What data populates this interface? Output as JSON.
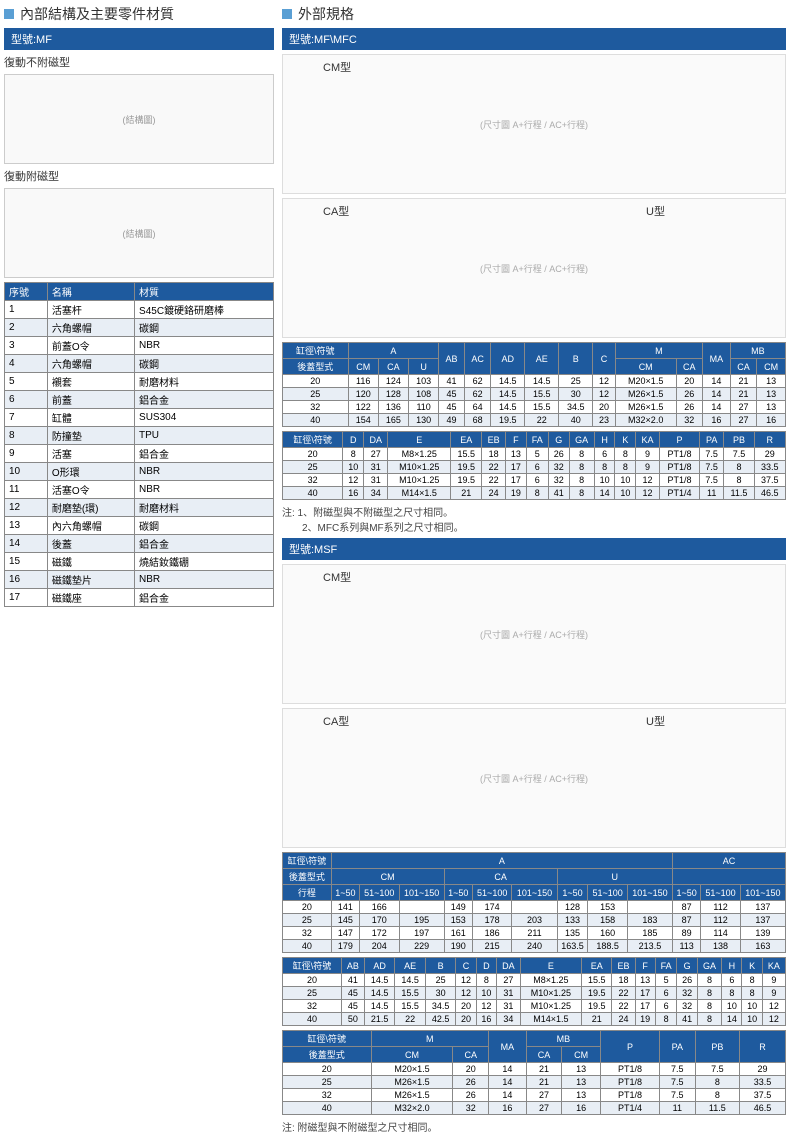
{
  "left": {
    "title": "內部結構及主要零件材質",
    "model_header": "型號:MF",
    "diag1_label": "復動不附磁型",
    "diag2_label": "復動附磁型",
    "diagram_placeholder": "(結構圖)",
    "parts_header": {
      "no": "序號",
      "name": "名稱",
      "material": "材質"
    },
    "parts": [
      {
        "no": "1",
        "name": "活塞杆",
        "material": "S45C鍍硬鉻研磨棒"
      },
      {
        "no": "2",
        "name": "六角螺帽",
        "material": "碳鋼"
      },
      {
        "no": "3",
        "name": "前蓋O令",
        "material": "NBR"
      },
      {
        "no": "4",
        "name": "六角螺帽",
        "material": "碳鋼"
      },
      {
        "no": "5",
        "name": "襯套",
        "material": "耐磨材料"
      },
      {
        "no": "6",
        "name": "前蓋",
        "material": "鋁合金"
      },
      {
        "no": "7",
        "name": "缸體",
        "material": "SUS304"
      },
      {
        "no": "8",
        "name": "防撞墊",
        "material": "TPU"
      },
      {
        "no": "9",
        "name": "活塞",
        "material": "鋁合金"
      },
      {
        "no": "10",
        "name": "O形環",
        "material": "NBR"
      },
      {
        "no": "11",
        "name": "活塞O令",
        "material": "NBR"
      },
      {
        "no": "12",
        "name": "耐磨墊(環)",
        "material": "耐磨材料"
      },
      {
        "no": "13",
        "name": "內六角螺帽",
        "material": "碳鋼"
      },
      {
        "no": "14",
        "name": "後蓋",
        "material": "鋁合金"
      },
      {
        "no": "15",
        "name": "磁鐵",
        "material": "燒結釹鐵硼"
      },
      {
        "no": "16",
        "name": "磁鐵墊片",
        "material": "NBR"
      },
      {
        "no": "17",
        "name": "磁鐵座",
        "material": "鋁合金"
      }
    ]
  },
  "right": {
    "title": "外部規格",
    "section1": {
      "model_header": "型號:MF\\MFC",
      "cm_label": "CM型",
      "ca_label": "CA型",
      "u_label": "U型",
      "diagram_placeholder": "(尺寸圖 A+行程 / AC+行程)",
      "table1": {
        "header_main": "缸徑\\符號",
        "header_sub": "後蓋型式",
        "cols_top": [
          "A",
          "",
          "",
          "AB",
          "AC",
          "AD",
          "AE",
          "B",
          "C",
          "M",
          "",
          "MA",
          "MB",
          ""
        ],
        "cols_sub": [
          "CM",
          "CA",
          "U",
          "",
          "",
          "",
          "",
          "",
          "",
          "CM",
          "CA",
          "",
          "CA",
          "CM"
        ],
        "rows": [
          [
            "20",
            "116",
            "124",
            "103",
            "41",
            "62",
            "14.5",
            "14.5",
            "25",
            "12",
            "M20×1.5",
            "20",
            "14",
            "21",
            "13"
          ],
          [
            "25",
            "120",
            "128",
            "108",
            "45",
            "62",
            "14.5",
            "15.5",
            "30",
            "12",
            "M26×1.5",
            "26",
            "14",
            "21",
            "13"
          ],
          [
            "32",
            "122",
            "136",
            "110",
            "45",
            "64",
            "14.5",
            "15.5",
            "34.5",
            "20",
            "M26×1.5",
            "26",
            "14",
            "27",
            "13"
          ],
          [
            "40",
            "154",
            "165",
            "130",
            "49",
            "68",
            "19.5",
            "22",
            "40",
            "23",
            "M32×2.0",
            "32",
            "16",
            "27",
            "16"
          ]
        ]
      },
      "table2": {
        "header_main": "缸徑\\符號",
        "cols": [
          "D",
          "DA",
          "E",
          "EA",
          "EB",
          "F",
          "FA",
          "G",
          "GA",
          "H",
          "K",
          "KA",
          "P",
          "PA",
          "PB",
          "R"
        ],
        "rows": [
          [
            "20",
            "8",
            "27",
            "M8×1.25",
            "15.5",
            "18",
            "13",
            "5",
            "26",
            "8",
            "6",
            "8",
            "9",
            "PT1/8",
            "7.5",
            "7.5",
            "29"
          ],
          [
            "25",
            "10",
            "31",
            "M10×1.25",
            "19.5",
            "22",
            "17",
            "6",
            "32",
            "8",
            "8",
            "8",
            "9",
            "PT1/8",
            "7.5",
            "8",
            "33.5"
          ],
          [
            "32",
            "12",
            "31",
            "M10×1.25",
            "19.5",
            "22",
            "17",
            "6",
            "32",
            "8",
            "10",
            "10",
            "12",
            "PT1/8",
            "7.5",
            "8",
            "37.5"
          ],
          [
            "40",
            "16",
            "34",
            "M14×1.5",
            "21",
            "24",
            "19",
            "8",
            "41",
            "8",
            "14",
            "10",
            "12",
            "PT1/4",
            "11",
            "11.5",
            "46.5"
          ]
        ]
      },
      "note": "注: 1、附磁型與不附磁型之尺寸相同。\n　　2、MFC系列與MF系列之尺寸相同。"
    },
    "section2": {
      "model_header": "型號:MSF",
      "cm_label": "CM型",
      "ca_label": "CA型",
      "u_label": "U型",
      "diagram_placeholder": "(尺寸圖 A+行程 / AC+行程)",
      "table1": {
        "header1": "缸徑\\符號",
        "header2": "後蓋型式",
        "header3": "行程",
        "group_cols": [
          "A",
          "AC"
        ],
        "sub_cols": [
          "CM",
          "CA",
          "U",
          ""
        ],
        "range_cols": [
          "1~50",
          "51~100",
          "101~150",
          "1~50",
          "51~100",
          "101~150",
          "1~50",
          "51~100",
          "101~150",
          "1~50",
          "51~100",
          "101~150"
        ],
        "rows": [
          [
            "20",
            "141",
            "166",
            "",
            "149",
            "174",
            "",
            "128",
            "153",
            "",
            "87",
            "112",
            "137"
          ],
          [
            "25",
            "145",
            "170",
            "195",
            "153",
            "178",
            "203",
            "133",
            "158",
            "183",
            "87",
            "112",
            "137"
          ],
          [
            "32",
            "147",
            "172",
            "197",
            "161",
            "186",
            "211",
            "135",
            "160",
            "185",
            "89",
            "114",
            "139"
          ],
          [
            "40",
            "179",
            "204",
            "229",
            "190",
            "215",
            "240",
            "163.5",
            "188.5",
            "213.5",
            "113",
            "138",
            "163"
          ]
        ]
      },
      "table2": {
        "header_main": "缸徑\\符號",
        "cols": [
          "AB",
          "AD",
          "AE",
          "B",
          "C",
          "D",
          "DA",
          "E",
          "EA",
          "EB",
          "F",
          "FA",
          "G",
          "GA",
          "H",
          "K",
          "KA"
        ],
        "rows": [
          [
            "20",
            "41",
            "14.5",
            "14.5",
            "25",
            "12",
            "8",
            "27",
            "M8×1.25",
            "15.5",
            "18",
            "13",
            "5",
            "26",
            "8",
            "6",
            "8",
            "9"
          ],
          [
            "25",
            "45",
            "14.5",
            "15.5",
            "30",
            "12",
            "10",
            "31",
            "M10×1.25",
            "19.5",
            "22",
            "17",
            "6",
            "32",
            "8",
            "8",
            "8",
            "9"
          ],
          [
            "32",
            "45",
            "14.5",
            "15.5",
            "34.5",
            "20",
            "12",
            "31",
            "M10×1.25",
            "19.5",
            "22",
            "17",
            "6",
            "32",
            "8",
            "10",
            "10",
            "12"
          ],
          [
            "40",
            "50",
            "21.5",
            "22",
            "42.5",
            "20",
            "16",
            "34",
            "M14×1.5",
            "21",
            "24",
            "19",
            "8",
            "41",
            "8",
            "14",
            "10",
            "12"
          ]
        ]
      },
      "table3": {
        "header1": "缸徑\\符號",
        "header2": "後蓋型式",
        "group_cols": [
          "M",
          "MA",
          "MB",
          "P",
          "PA",
          "PB",
          "R"
        ],
        "sub_cols": [
          "CM",
          "CA",
          "",
          "CA",
          "CM",
          "",
          "",
          "",
          ""
        ],
        "rows": [
          [
            "20",
            "M20×1.5",
            "20",
            "14",
            "21",
            "13",
            "PT1/8",
            "7.5",
            "7.5",
            "29"
          ],
          [
            "25",
            "M26×1.5",
            "26",
            "14",
            "21",
            "13",
            "PT1/8",
            "7.5",
            "8",
            "33.5"
          ],
          [
            "32",
            "M26×1.5",
            "26",
            "14",
            "27",
            "13",
            "PT1/8",
            "7.5",
            "8",
            "37.5"
          ],
          [
            "40",
            "M32×2.0",
            "32",
            "16",
            "27",
            "16",
            "PT1/4",
            "11",
            "11.5",
            "46.5"
          ]
        ]
      },
      "note": "注: 附磁型與不附磁型之尺寸相同。"
    }
  },
  "colors": {
    "header_bg": "#1e5a9e",
    "header_fg": "#ffffff",
    "row_alt": "#e8eef5",
    "border": "#888888",
    "bullet": "#5a9fd4"
  }
}
